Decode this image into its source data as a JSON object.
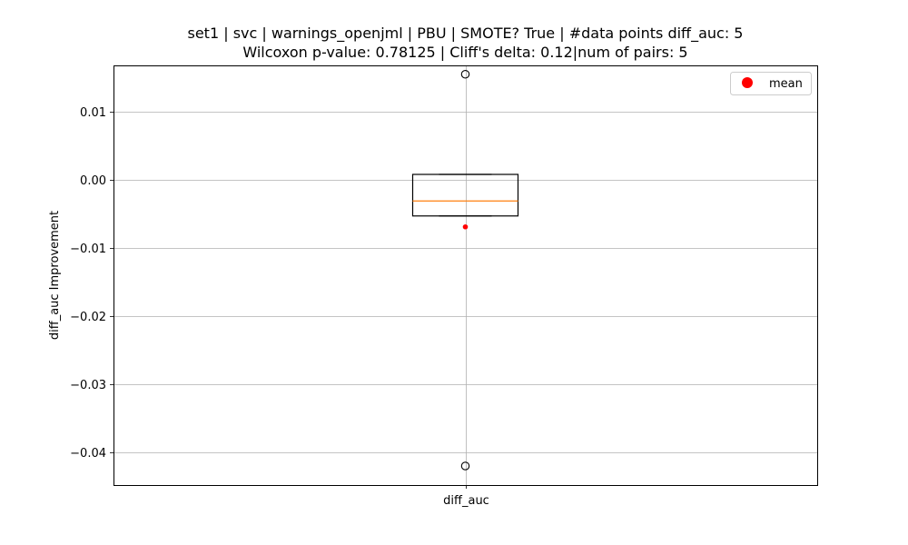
{
  "chart_data": {
    "type": "box",
    "title_lines": [
      "set1 | svc | warnings_openjml | PBU | SMOTE? True | #data points diff_auc: 5",
      "Wilcoxon p-value: 0.78125 | Cliff's delta: 0.12|num of pairs: 5"
    ],
    "xlabel": "",
    "ylabel": "diff_auc Improvement",
    "categories": [
      "diff_auc"
    ],
    "ylim": [
      -0.0448,
      0.0168
    ],
    "yticks": [
      0.01,
      0.0,
      -0.01,
      -0.02,
      -0.03,
      -0.04
    ],
    "ytick_labels": [
      "0.01",
      "0.00",
      "−0.01",
      "−0.02",
      "−0.03",
      "−0.04"
    ],
    "grid": true,
    "series": [
      {
        "category": "diff_auc",
        "q1": -0.0053,
        "median": -0.0031,
        "q3": 0.0008,
        "whisker_low": -0.0053,
        "whisker_high": 0.0008,
        "mean": -0.0069,
        "outliers": [
          0.0155,
          -0.042
        ]
      }
    ],
    "legend": {
      "position": "top-right",
      "entries": [
        {
          "label": "mean",
          "color": "#ff0000"
        }
      ]
    },
    "colors": {
      "median": "#ff7f0e",
      "mean": "#ff0000",
      "box": "#000000",
      "grid": "#b0b0b0"
    }
  }
}
